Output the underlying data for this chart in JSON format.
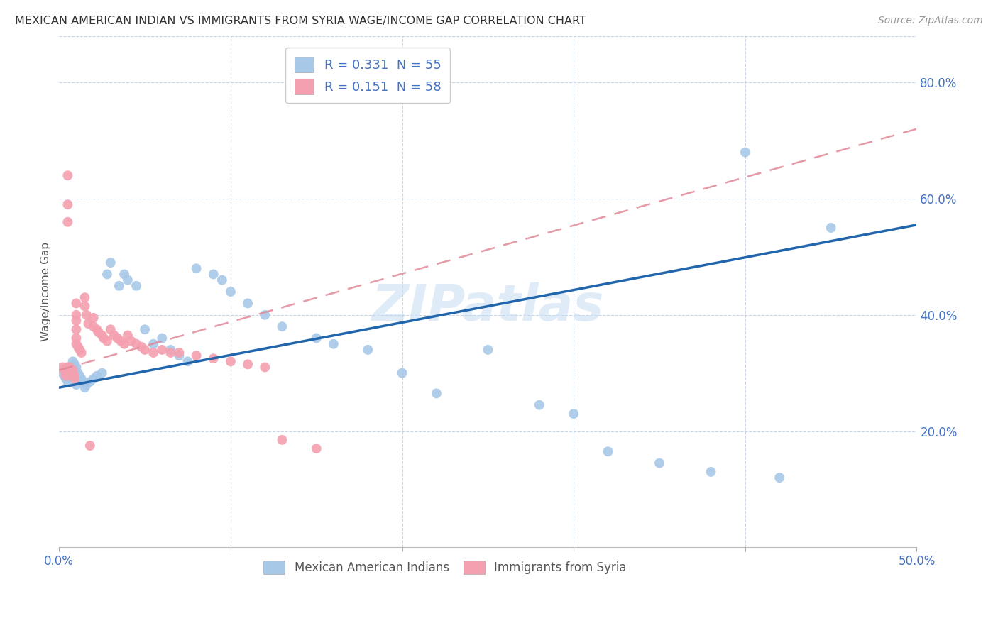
{
  "title": "MEXICAN AMERICAN INDIAN VS IMMIGRANTS FROM SYRIA WAGE/INCOME GAP CORRELATION CHART",
  "source": "Source: ZipAtlas.com",
  "ylabel": "Wage/Income Gap",
  "xlim": [
    0.0,
    0.5
  ],
  "ylim": [
    0.0,
    0.88
  ],
  "yticks": [
    0.2,
    0.4,
    0.6,
    0.8
  ],
  "ytick_labels": [
    "20.0%",
    "40.0%",
    "60.0%",
    "80.0%"
  ],
  "xtick_labels_show": [
    "0.0%",
    "50.0%"
  ],
  "xtick_positions_show": [
    0.0,
    0.5
  ],
  "xtick_grid_positions": [
    0.0,
    0.05,
    0.1,
    0.15,
    0.2,
    0.25,
    0.3,
    0.35,
    0.4,
    0.45,
    0.5
  ],
  "legend1_label": "R = 0.331  N = 55",
  "legend2_label": "R = 0.151  N = 58",
  "legend_label1_series": "Mexican American Indians",
  "legend_label2_series": "Immigrants from Syria",
  "color_blue": "#a8c8e8",
  "color_pink": "#f4a0b0",
  "color_blue_line": "#2166ac",
  "color_pink_line": "#e08898",
  "watermark": "ZIPatlas",
  "blue_line_x": [
    0.0,
    0.5
  ],
  "blue_line_y": [
    0.275,
    0.555
  ],
  "pink_line_x": [
    0.0,
    0.5
  ],
  "pink_line_y": [
    0.305,
    0.72
  ],
  "blue_points_x": [
    0.002,
    0.003,
    0.004,
    0.005,
    0.005,
    0.006,
    0.007,
    0.008,
    0.008,
    0.009,
    0.01,
    0.01,
    0.011,
    0.012,
    0.013,
    0.014,
    0.015,
    0.016,
    0.018,
    0.02,
    0.022,
    0.025,
    0.028,
    0.03,
    0.035,
    0.038,
    0.04,
    0.045,
    0.05,
    0.055,
    0.06,
    0.065,
    0.07,
    0.075,
    0.08,
    0.09,
    0.095,
    0.1,
    0.11,
    0.12,
    0.13,
    0.15,
    0.16,
    0.18,
    0.2,
    0.22,
    0.25,
    0.28,
    0.3,
    0.32,
    0.35,
    0.38,
    0.4,
    0.42,
    0.45
  ],
  "blue_points_y": [
    0.3,
    0.295,
    0.29,
    0.285,
    0.31,
    0.305,
    0.3,
    0.295,
    0.32,
    0.315,
    0.28,
    0.31,
    0.3,
    0.295,
    0.29,
    0.285,
    0.275,
    0.28,
    0.285,
    0.29,
    0.295,
    0.3,
    0.47,
    0.49,
    0.45,
    0.47,
    0.46,
    0.45,
    0.375,
    0.35,
    0.36,
    0.34,
    0.33,
    0.32,
    0.48,
    0.47,
    0.46,
    0.44,
    0.42,
    0.4,
    0.38,
    0.36,
    0.35,
    0.34,
    0.3,
    0.265,
    0.34,
    0.245,
    0.23,
    0.165,
    0.145,
    0.13,
    0.68,
    0.12,
    0.55
  ],
  "pink_points_x": [
    0.002,
    0.003,
    0.004,
    0.004,
    0.005,
    0.005,
    0.005,
    0.005,
    0.006,
    0.006,
    0.007,
    0.007,
    0.008,
    0.008,
    0.009,
    0.009,
    0.01,
    0.01,
    0.01,
    0.01,
    0.01,
    0.01,
    0.011,
    0.012,
    0.013,
    0.015,
    0.015,
    0.016,
    0.017,
    0.018,
    0.02,
    0.02,
    0.022,
    0.023,
    0.025,
    0.026,
    0.028,
    0.03,
    0.032,
    0.034,
    0.036,
    0.038,
    0.04,
    0.042,
    0.045,
    0.048,
    0.05,
    0.055,
    0.06,
    0.065,
    0.07,
    0.08,
    0.09,
    0.1,
    0.11,
    0.12,
    0.13,
    0.15
  ],
  "pink_points_y": [
    0.31,
    0.305,
    0.3,
    0.295,
    0.64,
    0.59,
    0.56,
    0.31,
    0.31,
    0.305,
    0.3,
    0.295,
    0.305,
    0.3,
    0.295,
    0.29,
    0.42,
    0.4,
    0.39,
    0.375,
    0.36,
    0.35,
    0.345,
    0.34,
    0.335,
    0.43,
    0.415,
    0.4,
    0.385,
    0.175,
    0.395,
    0.38,
    0.375,
    0.37,
    0.365,
    0.36,
    0.355,
    0.375,
    0.365,
    0.36,
    0.355,
    0.35,
    0.365,
    0.355,
    0.35,
    0.345,
    0.34,
    0.335,
    0.34,
    0.335,
    0.335,
    0.33,
    0.325,
    0.32,
    0.315,
    0.31,
    0.185,
    0.17
  ]
}
